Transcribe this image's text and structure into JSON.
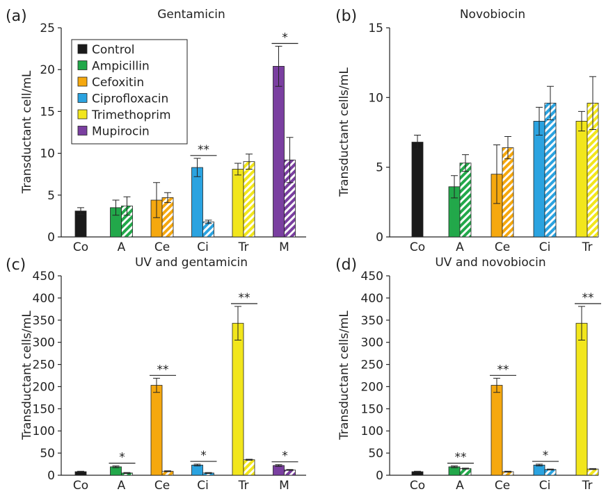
{
  "colors": {
    "Control": "#1a1a1a",
    "Ampicillin": "#22a84a",
    "Cefoxitin": "#f5a80f",
    "Ciprofloxacin": "#2ba3e0",
    "Trimethoprim": "#f2e61c",
    "Mupirocin": "#7a3fa0"
  },
  "legend": [
    "Control",
    "Ampicillin",
    "Cefoxitin",
    "Ciprofloxacin",
    "Trimethoprim",
    "Mupirocin"
  ],
  "chart_data": [
    {
      "panel_label": "(a)",
      "type": "bar",
      "title": "Gentamicin",
      "ylabel": "Transductant cell/mL",
      "xlabel": "",
      "ylim": [
        0,
        25
      ],
      "yticks": [
        0,
        5,
        10,
        15,
        20,
        25
      ],
      "categories": [
        "Co",
        "A",
        "Ce",
        "Ci",
        "Tr",
        "M"
      ],
      "series": [
        {
          "name": "solid",
          "values": [
            3.1,
            3.5,
            4.4,
            8.3,
            8.1,
            20.4
          ],
          "errors": [
            0.4,
            0.9,
            2.1,
            1.1,
            0.7,
            2.4
          ]
        },
        {
          "name": "striped",
          "values": [
            null,
            3.7,
            4.7,
            1.8,
            9.0,
            9.2
          ],
          "errors": [
            null,
            1.1,
            0.6,
            0.2,
            0.9,
            2.7
          ]
        }
      ],
      "annotations": [
        {
          "category": "Ci",
          "text": "**"
        },
        {
          "category": "M",
          "text": "*"
        }
      ]
    },
    {
      "panel_label": "(b)",
      "type": "bar",
      "title": "Novobiocin",
      "ylabel": "Transductant cells/mL",
      "xlabel": "",
      "ylim": [
        0,
        15
      ],
      "yticks": [
        0,
        5,
        10,
        15
      ],
      "categories": [
        "Co",
        "A",
        "Ce",
        "Ci",
        "Tr"
      ],
      "series": [
        {
          "name": "solid",
          "values": [
            6.8,
            3.6,
            4.5,
            8.3,
            8.3
          ],
          "errors": [
            0.5,
            0.8,
            2.1,
            1.0,
            0.7
          ]
        },
        {
          "name": "striped",
          "values": [
            null,
            5.3,
            6.4,
            9.6,
            9.6
          ],
          "errors": [
            null,
            0.6,
            0.8,
            1.2,
            1.9
          ]
        }
      ],
      "annotations": []
    },
    {
      "panel_label": "(c)",
      "type": "bar",
      "title": "UV and gentamicin",
      "ylabel": "Transductant cells/mL",
      "xlabel": "",
      "ylim": [
        0,
        450
      ],
      "yticks": [
        0,
        50,
        100,
        150,
        200,
        250,
        300,
        350,
        400,
        450
      ],
      "categories": [
        "Co",
        "A",
        "Ce",
        "Ci",
        "Tr",
        "M"
      ],
      "series": [
        {
          "name": "solid",
          "values": [
            8,
            19,
            203,
            23,
            343,
            22
          ],
          "errors": [
            1,
            2,
            16,
            2,
            38,
            2
          ]
        },
        {
          "name": "striped",
          "values": [
            null,
            5,
            9,
            5,
            35,
            12
          ],
          "errors": [
            null,
            1,
            1,
            1,
            1,
            1
          ]
        }
      ],
      "annotations": [
        {
          "category": "A",
          "text": "*"
        },
        {
          "category": "Ce",
          "text": "**"
        },
        {
          "category": "Ci",
          "text": "*"
        },
        {
          "category": "Tr",
          "text": "**"
        },
        {
          "category": "M",
          "text": "*"
        }
      ]
    },
    {
      "panel_label": "(d)",
      "type": "bar",
      "title": "UV and novobiocin",
      "ylabel": "Transductant cells/mL",
      "xlabel": "",
      "ylim": [
        0,
        450
      ],
      "yticks": [
        0,
        50,
        100,
        150,
        200,
        250,
        300,
        350,
        400,
        450
      ],
      "categories": [
        "Co",
        "A",
        "Ce",
        "Ci",
        "Tr"
      ],
      "series": [
        {
          "name": "solid",
          "values": [
            8,
            19,
            203,
            23,
            343
          ],
          "errors": [
            1,
            2,
            16,
            2,
            38
          ]
        },
        {
          "name": "striped",
          "values": [
            null,
            15,
            8,
            13,
            14
          ],
          "errors": [
            null,
            1,
            1,
            1,
            1
          ]
        }
      ],
      "annotations": [
        {
          "category": "A",
          "text": "**"
        },
        {
          "category": "Ce",
          "text": "**"
        },
        {
          "category": "Ci",
          "text": "*"
        },
        {
          "category": "Tr",
          "text": "**"
        }
      ]
    }
  ]
}
